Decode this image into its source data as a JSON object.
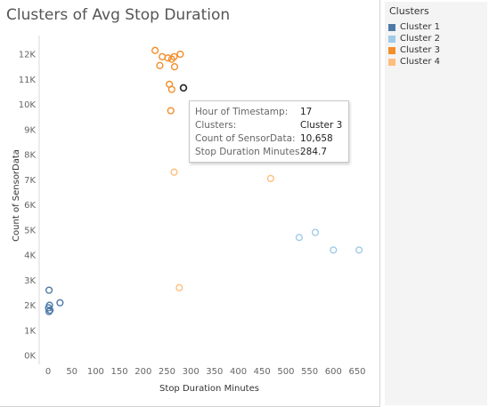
{
  "chart_data": {
    "type": "scatter",
    "title": "Clusters of Avg Stop Duration",
    "xlabel": "Stop Duration Minutes",
    "ylabel": "Count of SensorData",
    "xlim": [
      0,
      650
    ],
    "ylim": [
      0,
      12000
    ],
    "x_ticks": [
      "0",
      "50",
      "100",
      "150",
      "200",
      "250",
      "300",
      "350",
      "400",
      "450",
      "500",
      "550",
      "600",
      "650"
    ],
    "y_ticks": [
      "0K",
      "1K",
      "2K",
      "3K",
      "4K",
      "5K",
      "6K",
      "7K",
      "8K",
      "9K",
      "10K",
      "11K",
      "12K"
    ],
    "grid": false,
    "series": [
      {
        "name": "Cluster 1",
        "color": "#4e79a7",
        "points": [
          {
            "x": 2,
            "y": 2600
          },
          {
            "x": 3,
            "y": 2000
          },
          {
            "x": 1,
            "y": 1900
          },
          {
            "x": 25,
            "y": 2100
          },
          {
            "x": 4,
            "y": 1800
          },
          {
            "x": 2,
            "y": 1750
          }
        ]
      },
      {
        "name": "Cluster 2",
        "color": "#a0cbe8",
        "points": [
          {
            "x": 528,
            "y": 4700
          },
          {
            "x": 562,
            "y": 4900
          },
          {
            "x": 600,
            "y": 4200
          },
          {
            "x": 654,
            "y": 4200
          }
        ]
      },
      {
        "name": "Cluster 3",
        "color": "#f28e2b",
        "points": [
          {
            "x": 225,
            "y": 12150
          },
          {
            "x": 240,
            "y": 11900
          },
          {
            "x": 252,
            "y": 11850
          },
          {
            "x": 260,
            "y": 11800
          },
          {
            "x": 265,
            "y": 11900
          },
          {
            "x": 278,
            "y": 12000
          },
          {
            "x": 235,
            "y": 11550
          },
          {
            "x": 266,
            "y": 11500
          },
          {
            "x": 255,
            "y": 10800
          },
          {
            "x": 260,
            "y": 10600
          },
          {
            "x": 284.7,
            "y": 10658
          },
          {
            "x": 258,
            "y": 9750
          }
        ]
      },
      {
        "name": "Cluster 4",
        "color": "#ffbe7d",
        "points": [
          {
            "x": 265,
            "y": 7300
          },
          {
            "x": 468,
            "y": 7050
          },
          {
            "x": 276,
            "y": 2700
          }
        ]
      }
    ]
  },
  "legend": {
    "title": "Clusters",
    "items": [
      {
        "label": "Cluster 1",
        "color": "#4e79a7"
      },
      {
        "label": "Cluster 2",
        "color": "#a0cbe8"
      },
      {
        "label": "Cluster 3",
        "color": "#f28e2b"
      },
      {
        "label": "Cluster 4",
        "color": "#ffbe7d"
      }
    ]
  },
  "tooltip": {
    "rows": [
      {
        "key": "Hour of Timestamp:",
        "value": "17"
      },
      {
        "key": "Clusters:",
        "value": "Cluster 3"
      },
      {
        "key": "Count of SensorData:",
        "value": "10,658"
      },
      {
        "key": "Stop Duration Minutes:",
        "value": "284.7"
      }
    ]
  }
}
